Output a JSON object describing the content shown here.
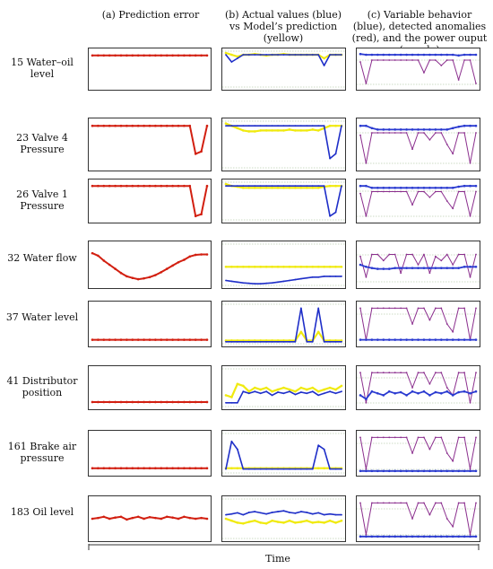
{
  "headers": {
    "col_a": "(a) Prediction error",
    "col_b": "(b) Actual values (blue) vs Model’s prediction (yellow)",
    "col_c": "(c) Variable behavior (blue), detected anomalies (red), and the power ouput (purple)"
  },
  "xlabel": "Time",
  "colors": {
    "prediction_error": "#d21f10",
    "actual": "#1e2ec8",
    "prediction": "#f0ea10",
    "anomaly": "#e0241a",
    "power": "#8b2f8e",
    "variable": "#2a3ad0"
  },
  "rows": [
    {
      "label": "15 Water–oil level"
    },
    {
      "label": "23 Valve 4 Pressure"
    },
    {
      "label": "26 Valve 1 Pressure"
    },
    {
      "label": "32 Water flow"
    },
    {
      "label": "37 Water level"
    },
    {
      "label": "41 Distributor position"
    },
    {
      "label": "161 Brake air pressure"
    },
    {
      "label": "183 Oil level"
    }
  ],
  "chart_data": {
    "type": "line",
    "title": "",
    "xlabel": "Time",
    "columns": [
      "(a) Prediction error",
      "(b) Actual values (blue) vs Model’s prediction (yellow)",
      "(c) Variable behavior (blue), detected anomalies (red), and the power ouput (purple)"
    ],
    "rows": [
      "15 Water–oil level",
      "23 Valve 4 Pressure",
      "26 Valve 1 Pressure",
      "32 Water flow",
      "37 Water level",
      "41 Distributor position",
      "161 Brake air pressure",
      "183 Oil level"
    ],
    "x": [
      0,
      0.05,
      0.1,
      0.15,
      0.2,
      0.25,
      0.3,
      0.35,
      0.4,
      0.45,
      0.5,
      0.55,
      0.6,
      0.65,
      0.7,
      0.75,
      0.8,
      0.85,
      0.9,
      0.95,
      1.0
    ],
    "panels": {
      "error": [
        [
          0.88,
          0.88,
          0.88,
          0.88,
          0.88,
          0.88,
          0.88,
          0.88,
          0.88,
          0.88,
          0.88,
          0.88,
          0.88,
          0.88,
          0.88,
          0.88,
          0.88,
          0.88,
          0.88,
          0.88,
          0.88
        ],
        [
          0.9,
          0.9,
          0.9,
          0.9,
          0.9,
          0.9,
          0.9,
          0.9,
          0.9,
          0.9,
          0.9,
          0.9,
          0.9,
          0.9,
          0.9,
          0.9,
          0.9,
          0.9,
          0.3,
          0.35,
          0.9
        ],
        [
          0.9,
          0.9,
          0.9,
          0.9,
          0.9,
          0.9,
          0.9,
          0.9,
          0.9,
          0.9,
          0.9,
          0.9,
          0.9,
          0.9,
          0.9,
          0.9,
          0.9,
          0.9,
          0.1,
          0.15,
          0.9
        ],
        [
          0.78,
          0.72,
          0.6,
          0.5,
          0.4,
          0.3,
          0.22,
          0.18,
          0.15,
          0.17,
          0.2,
          0.25,
          0.32,
          0.4,
          0.48,
          0.56,
          0.62,
          0.7,
          0.74,
          0.75,
          0.75
        ],
        [
          0.1,
          0.1,
          0.1,
          0.1,
          0.1,
          0.1,
          0.1,
          0.1,
          0.1,
          0.1,
          0.1,
          0.1,
          0.1,
          0.1,
          0.1,
          0.1,
          0.1,
          0.1,
          0.1,
          0.1,
          0.1
        ],
        [
          0.12,
          0.12,
          0.12,
          0.12,
          0.12,
          0.12,
          0.12,
          0.12,
          0.12,
          0.12,
          0.12,
          0.12,
          0.12,
          0.12,
          0.12,
          0.12,
          0.12,
          0.12,
          0.12,
          0.12,
          0.12
        ],
        [
          0.12,
          0.12,
          0.12,
          0.12,
          0.12,
          0.12,
          0.12,
          0.12,
          0.12,
          0.12,
          0.12,
          0.12,
          0.12,
          0.12,
          0.12,
          0.12,
          0.12,
          0.12,
          0.12,
          0.12,
          0.12
        ],
        [
          0.5,
          0.52,
          0.55,
          0.5,
          0.53,
          0.55,
          0.48,
          0.52,
          0.55,
          0.5,
          0.54,
          0.52,
          0.5,
          0.55,
          0.53,
          0.5,
          0.55,
          0.52,
          0.5,
          0.52,
          0.5
        ]
      ],
      "actual": [
        [
          0.9,
          0.7,
          0.8,
          0.9,
          0.9,
          0.9,
          0.9,
          0.9,
          0.9,
          0.9,
          0.9,
          0.9,
          0.9,
          0.9,
          0.9,
          0.9,
          0.9,
          0.6,
          0.9,
          0.9,
          0.9
        ],
        [
          0.9,
          0.9,
          0.9,
          0.9,
          0.9,
          0.9,
          0.9,
          0.9,
          0.9,
          0.9,
          0.9,
          0.9,
          0.9,
          0.9,
          0.9,
          0.9,
          0.9,
          0.9,
          0.2,
          0.3,
          0.9
        ],
        [
          0.9,
          0.9,
          0.9,
          0.9,
          0.9,
          0.9,
          0.9,
          0.9,
          0.9,
          0.9,
          0.9,
          0.9,
          0.9,
          0.9,
          0.9,
          0.9,
          0.9,
          0.9,
          0.1,
          0.2,
          0.9
        ],
        [
          0.12,
          0.1,
          0.08,
          0.06,
          0.05,
          0.04,
          0.04,
          0.05,
          0.06,
          0.08,
          0.1,
          0.12,
          0.14,
          0.16,
          0.18,
          0.2,
          0.2,
          0.22,
          0.22,
          0.22,
          0.22
        ],
        [
          0.05,
          0.05,
          0.05,
          0.05,
          0.05,
          0.05,
          0.05,
          0.05,
          0.05,
          0.05,
          0.05,
          0.05,
          0.05,
          0.9,
          0.05,
          0.05,
          0.9,
          0.05,
          0.05,
          0.05,
          0.05
        ],
        [
          0.1,
          0.1,
          0.1,
          0.4,
          0.35,
          0.4,
          0.35,
          0.4,
          0.3,
          0.38,
          0.35,
          0.4,
          0.32,
          0.38,
          0.35,
          0.4,
          0.3,
          0.35,
          0.4,
          0.35,
          0.4
        ],
        [
          0.1,
          0.8,
          0.6,
          0.1,
          0.1,
          0.1,
          0.1,
          0.1,
          0.1,
          0.1,
          0.1,
          0.1,
          0.1,
          0.1,
          0.1,
          0.1,
          0.7,
          0.6,
          0.1,
          0.1,
          0.1
        ],
        [
          0.6,
          0.62,
          0.65,
          0.6,
          0.66,
          0.68,
          0.65,
          0.62,
          0.66,
          0.68,
          0.7,
          0.66,
          0.64,
          0.68,
          0.66,
          0.62,
          0.65,
          0.6,
          0.62,
          0.6,
          0.6
        ]
      ],
      "prediction": [
        [
          0.95,
          0.9,
          0.85,
          0.9,
          0.9,
          0.92,
          0.9,
          0.88,
          0.9,
          0.9,
          0.92,
          0.9,
          0.9,
          0.9,
          0.9,
          0.9,
          0.9,
          0.8,
          0.9,
          0.9,
          0.9
        ],
        [
          0.95,
          0.9,
          0.85,
          0.8,
          0.78,
          0.78,
          0.8,
          0.8,
          0.8,
          0.8,
          0.8,
          0.82,
          0.8,
          0.8,
          0.8,
          0.82,
          0.8,
          0.85,
          0.9,
          0.9,
          0.9
        ],
        [
          0.95,
          0.9,
          0.88,
          0.85,
          0.85,
          0.85,
          0.85,
          0.85,
          0.85,
          0.85,
          0.85,
          0.85,
          0.85,
          0.85,
          0.85,
          0.85,
          0.85,
          0.88,
          0.9,
          0.9,
          0.9
        ],
        [
          0.45,
          0.45,
          0.45,
          0.45,
          0.45,
          0.45,
          0.45,
          0.45,
          0.45,
          0.45,
          0.45,
          0.45,
          0.45,
          0.45,
          0.45,
          0.45,
          0.45,
          0.45,
          0.45,
          0.45,
          0.45
        ],
        [
          0.08,
          0.08,
          0.08,
          0.08,
          0.08,
          0.08,
          0.08,
          0.08,
          0.08,
          0.08,
          0.08,
          0.08,
          0.08,
          0.3,
          0.08,
          0.08,
          0.3,
          0.08,
          0.08,
          0.08,
          0.08
        ],
        [
          0.3,
          0.25,
          0.6,
          0.55,
          0.4,
          0.5,
          0.45,
          0.5,
          0.4,
          0.45,
          0.5,
          0.45,
          0.4,
          0.5,
          0.45,
          0.5,
          0.4,
          0.45,
          0.5,
          0.45,
          0.55
        ],
        [
          0.12,
          0.12,
          0.12,
          0.12,
          0.12,
          0.12,
          0.12,
          0.12,
          0.12,
          0.12,
          0.12,
          0.12,
          0.12,
          0.12,
          0.12,
          0.12,
          0.12,
          0.12,
          0.12,
          0.12,
          0.12
        ],
        [
          0.5,
          0.45,
          0.4,
          0.38,
          0.42,
          0.45,
          0.4,
          0.38,
          0.45,
          0.42,
          0.4,
          0.45,
          0.4,
          0.42,
          0.45,
          0.4,
          0.42,
          0.4,
          0.45,
          0.4,
          0.45
        ]
      ],
      "power": [
        [
          0.7,
          0.1,
          0.75,
          0.75,
          0.75,
          0.75,
          0.75,
          0.75,
          0.75,
          0.75,
          0.75,
          0.4,
          0.75,
          0.75,
          0.6,
          0.75,
          0.75,
          0.2,
          0.75,
          0.75,
          0.1
        ],
        [
          0.7,
          0.1,
          0.75,
          0.75,
          0.75,
          0.75,
          0.75,
          0.75,
          0.75,
          0.4,
          0.75,
          0.75,
          0.6,
          0.75,
          0.75,
          0.5,
          0.3,
          0.75,
          0.75,
          0.1,
          0.75
        ],
        [
          0.7,
          0.1,
          0.75,
          0.75,
          0.75,
          0.75,
          0.75,
          0.75,
          0.75,
          0.4,
          0.75,
          0.75,
          0.6,
          0.75,
          0.75,
          0.5,
          0.3,
          0.75,
          0.75,
          0.1,
          0.75
        ],
        [
          0.7,
          0.2,
          0.75,
          0.75,
          0.6,
          0.75,
          0.75,
          0.3,
          0.75,
          0.75,
          0.5,
          0.75,
          0.3,
          0.7,
          0.6,
          0.75,
          0.5,
          0.75,
          0.75,
          0.2,
          0.75
        ],
        [
          0.9,
          0.1,
          0.9,
          0.9,
          0.9,
          0.9,
          0.9,
          0.9,
          0.9,
          0.5,
          0.9,
          0.9,
          0.6,
          0.9,
          0.9,
          0.5,
          0.3,
          0.9,
          0.9,
          0.1,
          0.9
        ],
        [
          0.9,
          0.1,
          0.9,
          0.9,
          0.9,
          0.9,
          0.9,
          0.9,
          0.9,
          0.5,
          0.9,
          0.9,
          0.6,
          0.9,
          0.9,
          0.5,
          0.3,
          0.9,
          0.9,
          0.1,
          0.9
        ],
        [
          0.9,
          0.1,
          0.9,
          0.9,
          0.9,
          0.9,
          0.9,
          0.9,
          0.9,
          0.5,
          0.9,
          0.9,
          0.6,
          0.9,
          0.9,
          0.5,
          0.3,
          0.9,
          0.9,
          0.1,
          0.9
        ],
        [
          0.9,
          0.1,
          0.9,
          0.9,
          0.9,
          0.9,
          0.9,
          0.9,
          0.9,
          0.5,
          0.9,
          0.9,
          0.6,
          0.9,
          0.9,
          0.5,
          0.3,
          0.9,
          0.9,
          0.1,
          0.9
        ]
      ],
      "variable": [
        [
          0.92,
          0.9,
          0.9,
          0.9,
          0.9,
          0.9,
          0.9,
          0.9,
          0.9,
          0.9,
          0.9,
          0.9,
          0.9,
          0.9,
          0.9,
          0.9,
          0.9,
          0.88,
          0.9,
          0.9,
          0.9
        ],
        [
          0.9,
          0.9,
          0.85,
          0.82,
          0.82,
          0.82,
          0.82,
          0.82,
          0.82,
          0.82,
          0.82,
          0.82,
          0.82,
          0.82,
          0.82,
          0.82,
          0.85,
          0.88,
          0.9,
          0.9,
          0.9
        ],
        [
          0.9,
          0.9,
          0.85,
          0.85,
          0.85,
          0.85,
          0.85,
          0.85,
          0.85,
          0.85,
          0.85,
          0.85,
          0.85,
          0.85,
          0.85,
          0.85,
          0.85,
          0.88,
          0.9,
          0.9,
          0.9
        ],
        [
          0.5,
          0.45,
          0.42,
          0.4,
          0.4,
          0.4,
          0.42,
          0.42,
          0.42,
          0.42,
          0.42,
          0.42,
          0.42,
          0.42,
          0.42,
          0.42,
          0.42,
          0.42,
          0.45,
          0.45,
          0.45
        ],
        [
          0.1,
          0.1,
          0.1,
          0.1,
          0.1,
          0.1,
          0.1,
          0.1,
          0.1,
          0.1,
          0.1,
          0.1,
          0.1,
          0.1,
          0.1,
          0.1,
          0.1,
          0.1,
          0.1,
          0.1,
          0.1
        ],
        [
          0.3,
          0.2,
          0.4,
          0.35,
          0.3,
          0.4,
          0.35,
          0.38,
          0.3,
          0.4,
          0.35,
          0.4,
          0.3,
          0.38,
          0.35,
          0.4,
          0.3,
          0.38,
          0.4,
          0.35,
          0.4
        ],
        [
          0.05,
          0.05,
          0.05,
          0.05,
          0.05,
          0.05,
          0.05,
          0.05,
          0.05,
          0.05,
          0.05,
          0.05,
          0.05,
          0.05,
          0.05,
          0.05,
          0.05,
          0.05,
          0.05,
          0.05,
          0.05
        ],
        [
          0.05,
          0.05,
          0.05,
          0.05,
          0.05,
          0.05,
          0.05,
          0.05,
          0.05,
          0.05,
          0.05,
          0.05,
          0.05,
          0.05,
          0.05,
          0.05,
          0.05,
          0.05,
          0.05,
          0.05,
          0.05
        ]
      ]
    }
  }
}
